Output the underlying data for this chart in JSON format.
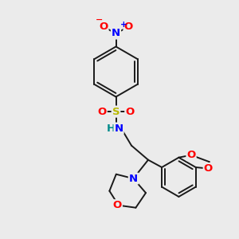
{
  "bg_color": "#ebebeb",
  "bond_color": "#1a1a1a",
  "bond_lw": 1.4,
  "atom_colors": {
    "N": "#0000ff",
    "O": "#ff0000",
    "S": "#b8b800",
    "NH": "#008b8b"
  },
  "font_size": 9.5,
  "figsize": [
    3.0,
    3.0
  ],
  "dpi": 100,
  "xlim": [
    0,
    10
  ],
  "ylim": [
    0,
    10
  ]
}
